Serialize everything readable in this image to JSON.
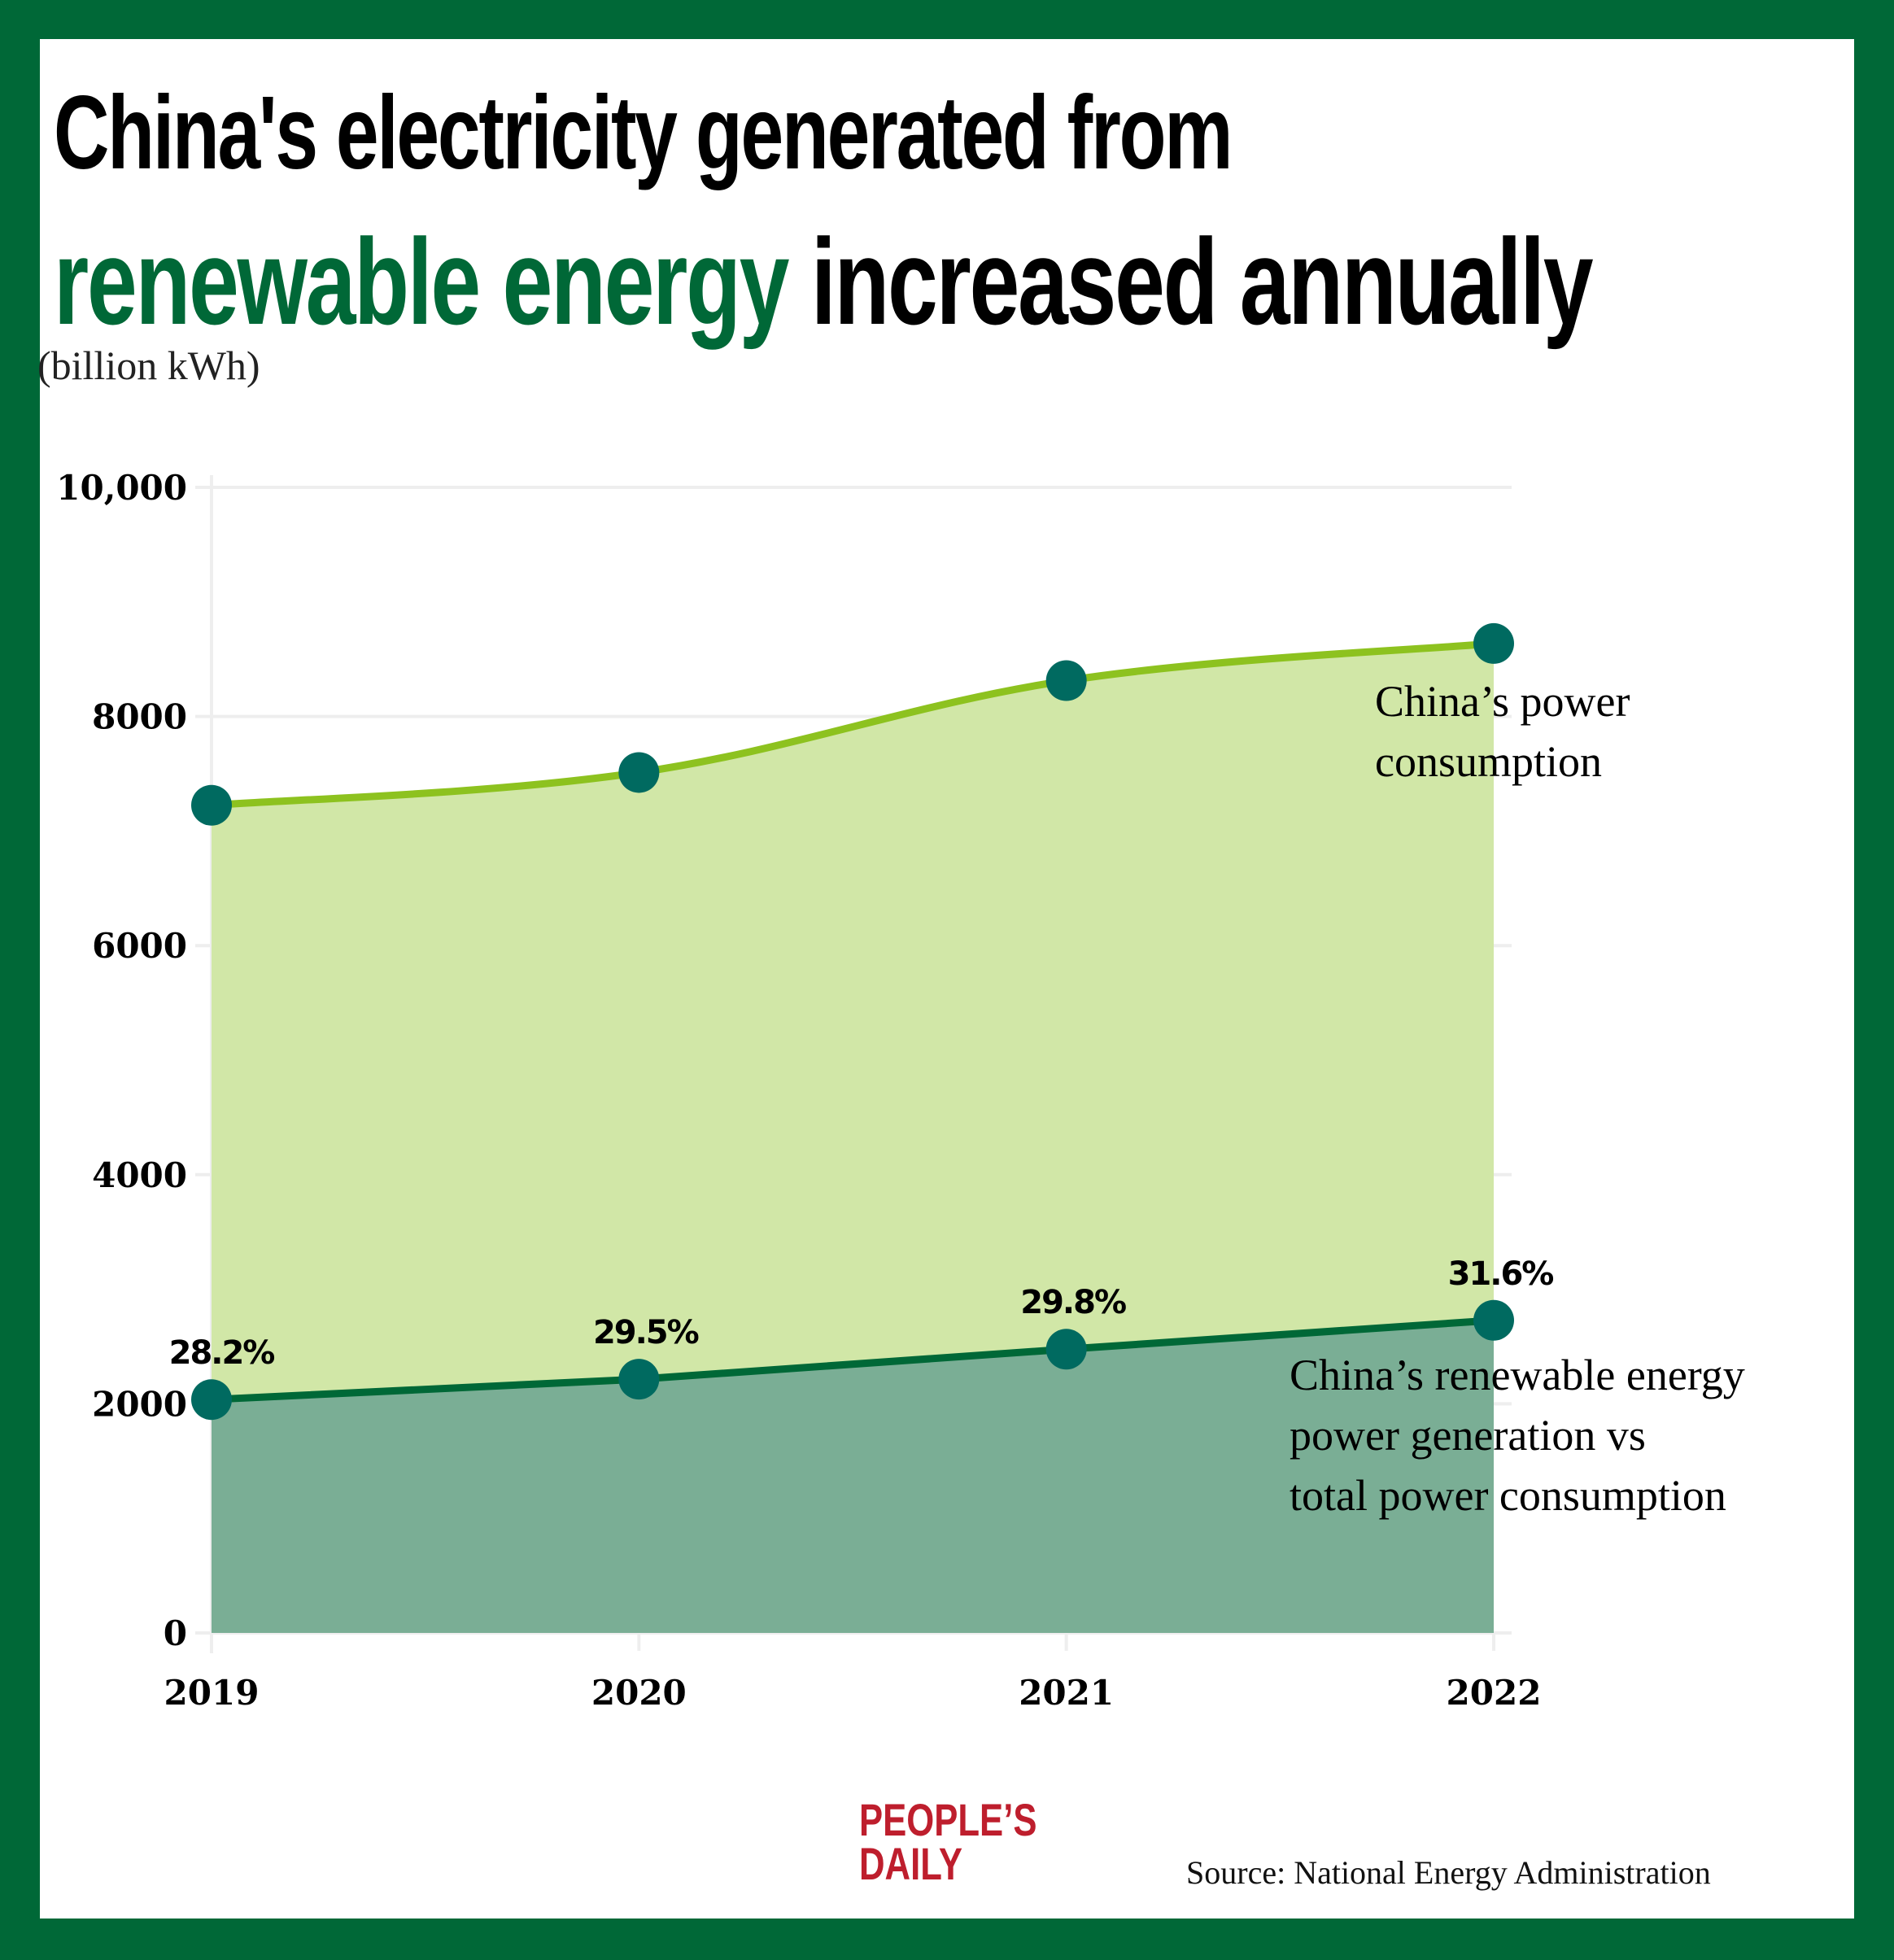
{
  "title": {
    "line1": "China's electricity generated from",
    "line2_highlight": "renewable energy",
    "line2_rest": " increased annually"
  },
  "colors": {
    "frame": "#006837",
    "highlight": "#006837",
    "consumption_line": "#8dc21f",
    "consumption_fill": "#d1e7a7",
    "renewable_line": "#006837",
    "renewable_fill": "#7aae95",
    "marker": "#006a60",
    "grid": "#eeeeee",
    "logo": "#be1e2d"
  },
  "chart_data": {
    "type": "area",
    "title": "China's electricity generated from renewable energy increased annually",
    "ylabel": "(billion kWh)",
    "xlabel": "",
    "categories": [
      "2019",
      "2020",
      "2021",
      "2022"
    ],
    "ylim": [
      0,
      10000
    ],
    "yticks": [
      0,
      2000,
      4000,
      6000,
      8000,
      10000
    ],
    "ytick_labels": [
      "0",
      "2000",
      "4000",
      "6000",
      "8000",
      "10,000"
    ],
    "grid": true,
    "series": [
      {
        "name": "China’s power consumption",
        "label_lines": [
          "China’s power",
          "consumption"
        ],
        "values": [
          7225,
          7511,
          8313,
          8637
        ]
      },
      {
        "name": "China’s renewable energy power generation vs total power consumption",
        "label_lines": [
          "China’s renewable energy",
          "power generation vs",
          "total power consumption"
        ],
        "values": [
          2037,
          2215,
          2477,
          2729
        ],
        "data_labels": [
          "28.2%",
          "29.5%",
          "29.8%",
          "31.6%"
        ]
      }
    ]
  },
  "footer": {
    "logo_line1": "PEOPLE’S",
    "logo_line2": "DAILY",
    "source": "Source: National Energy Administration"
  }
}
